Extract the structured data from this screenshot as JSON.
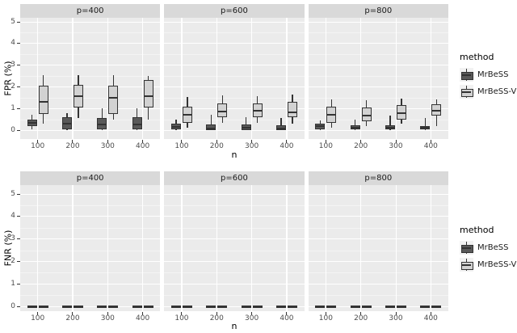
{
  "legend": {
    "title": "method",
    "items": [
      "MrBeSS",
      "MrBeSS-V"
    ]
  },
  "colors": {
    "background": "#ffffff",
    "panel_bg": "#ebebeb",
    "strip_bg": "#d9d9d9",
    "grid_major": "#ffffff",
    "grid_minor": "#f5f5f5",
    "box_border": "#333333",
    "tick_mark": "#333333",
    "tick_label": "#4d4d4d",
    "strip_text": "#1a1a1a",
    "axis_title": "#000000",
    "legend_key_bg": "#f2f2f2",
    "series_fills": {
      "MrBeSS": "#595959",
      "MrBeSS-V": "#d2d2d2"
    }
  },
  "chart_data": [
    {
      "type": "boxplot",
      "title": "",
      "ylabel": "FPR (%)",
      "xlabel": "n",
      "ylim": [
        0,
        5
      ],
      "yticks": [
        "0",
        "1",
        "2",
        "3",
        "4",
        "5"
      ],
      "minor_gridlines": [
        0.5,
        1.5,
        2.5,
        3.5,
        4.5
      ],
      "categories": [
        "100",
        "200",
        "300",
        "400"
      ],
      "series": [
        "MrBeSS",
        "MrBeSS-V"
      ],
      "box_format": "[min, q1, median, q3, max]",
      "legend_position": "right",
      "facets": [
        {
          "label": "p=400",
          "groups": [
            [
              [
                0.05,
                0.2,
                0.33,
                0.5,
                0.72
              ],
              [
                0.3,
                0.75,
                1.3,
                2.05,
                2.55
              ]
            ],
            [
              [
                0.0,
                0.05,
                0.28,
                0.58,
                0.8
              ],
              [
                0.55,
                1.05,
                1.55,
                2.1,
                2.55
              ]
            ],
            [
              [
                0.0,
                0.05,
                0.27,
                0.55,
                1.0
              ],
              [
                0.5,
                0.75,
                1.5,
                2.05,
                2.55
              ]
            ],
            [
              [
                0.0,
                0.05,
                0.27,
                0.58,
                1.0
              ],
              [
                0.5,
                1.05,
                1.55,
                2.3,
                2.5
              ]
            ]
          ]
        },
        {
          "label": "p=600",
          "groups": [
            [
              [
                0.0,
                0.02,
                0.15,
                0.3,
                0.47
              ],
              [
                0.1,
                0.35,
                0.72,
                1.08,
                1.53
              ]
            ],
            [
              [
                0.0,
                0.0,
                0.08,
                0.25,
                0.72
              ],
              [
                0.35,
                0.6,
                0.85,
                1.22,
                1.6
              ]
            ],
            [
              [
                0.0,
                0.0,
                0.1,
                0.25,
                0.6
              ],
              [
                0.35,
                0.6,
                0.9,
                1.22,
                1.55
              ]
            ],
            [
              [
                0.0,
                0.0,
                0.08,
                0.22,
                0.56
              ],
              [
                0.3,
                0.6,
                0.82,
                1.3,
                1.63
              ]
            ]
          ]
        },
        {
          "label": "p=800",
          "groups": [
            [
              [
                0.0,
                0.05,
                0.18,
                0.3,
                0.45
              ],
              [
                0.1,
                0.35,
                0.72,
                1.08,
                1.43
              ]
            ],
            [
              [
                0.0,
                0.02,
                0.1,
                0.22,
                0.47
              ],
              [
                0.2,
                0.42,
                0.68,
                1.03,
                1.38
              ]
            ],
            [
              [
                0.0,
                0.02,
                0.1,
                0.22,
                0.66
              ],
              [
                0.3,
                0.47,
                0.78,
                1.16,
                1.47
              ]
            ],
            [
              [
                0.0,
                0.02,
                0.1,
                0.2,
                0.56
              ],
              [
                0.2,
                0.66,
                0.9,
                1.18,
                1.43
              ]
            ]
          ]
        }
      ]
    },
    {
      "type": "boxplot",
      "title": "",
      "ylabel": "FNR (%)",
      "xlabel": "n",
      "ylim": [
        0,
        5
      ],
      "yticks": [
        "0",
        "1",
        "2",
        "3",
        "4",
        "5"
      ],
      "minor_gridlines": [
        0.5,
        1.5,
        2.5,
        3.5,
        4.5
      ],
      "categories": [
        "100",
        "200",
        "300",
        "400"
      ],
      "series": [
        "MrBeSS",
        "MrBeSS-V"
      ],
      "box_format": "[min, q1, median, q3, max]",
      "legend_position": "right",
      "facets": [
        {
          "label": "p=400",
          "groups": [
            [
              [
                0,
                0,
                0,
                0,
                0
              ],
              [
                0,
                0,
                0,
                0,
                0
              ]
            ],
            [
              [
                0,
                0,
                0,
                0,
                0
              ],
              [
                0,
                0,
                0,
                0,
                0
              ]
            ],
            [
              [
                0,
                0,
                0,
                0,
                0
              ],
              [
                0,
                0,
                0,
                0,
                0
              ]
            ],
            [
              [
                0,
                0,
                0,
                0,
                0
              ],
              [
                0,
                0,
                0,
                0,
                0
              ]
            ]
          ]
        },
        {
          "label": "p=600",
          "groups": [
            [
              [
                0,
                0,
                0,
                0,
                0
              ],
              [
                0,
                0,
                0,
                0,
                0
              ]
            ],
            [
              [
                0,
                0,
                0,
                0,
                0
              ],
              [
                0,
                0,
                0,
                0,
                0
              ]
            ],
            [
              [
                0,
                0,
                0,
                0,
                0
              ],
              [
                0,
                0,
                0,
                0,
                0
              ]
            ],
            [
              [
                0,
                0,
                0,
                0,
                0
              ],
              [
                0,
                0,
                0,
                0,
                0
              ]
            ]
          ]
        },
        {
          "label": "p=800",
          "groups": [
            [
              [
                0,
                0,
                0,
                0,
                0
              ],
              [
                0,
                0,
                0,
                0,
                0
              ]
            ],
            [
              [
                0,
                0,
                0,
                0,
                0
              ],
              [
                0,
                0,
                0,
                0,
                0
              ]
            ],
            [
              [
                0,
                0,
                0,
                0,
                0
              ],
              [
                0,
                0,
                0,
                0,
                0
              ]
            ],
            [
              [
                0,
                0,
                0,
                0,
                0
              ],
              [
                0,
                0,
                0,
                0,
                0
              ]
            ]
          ]
        }
      ]
    }
  ]
}
